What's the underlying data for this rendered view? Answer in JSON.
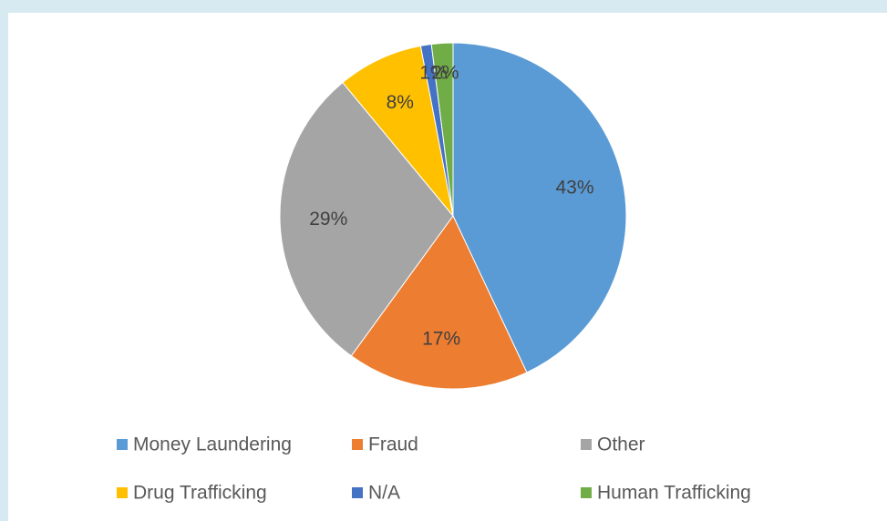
{
  "chart_data": {
    "type": "pie",
    "categories": [
      "Money Laundering",
      "Fraud",
      "Other",
      "Drug Trafficking",
      "N/A",
      "Human Trafficking"
    ],
    "values": [
      43,
      17,
      29,
      8,
      1,
      2
    ],
    "value_labels": [
      "43%",
      "17%",
      "29%",
      "8%",
      "1%",
      "2%"
    ],
    "colors": [
      "#5b9bd5",
      "#ed7d31",
      "#a5a5a5",
      "#ffc000",
      "#4472c4",
      "#70ad47"
    ]
  }
}
